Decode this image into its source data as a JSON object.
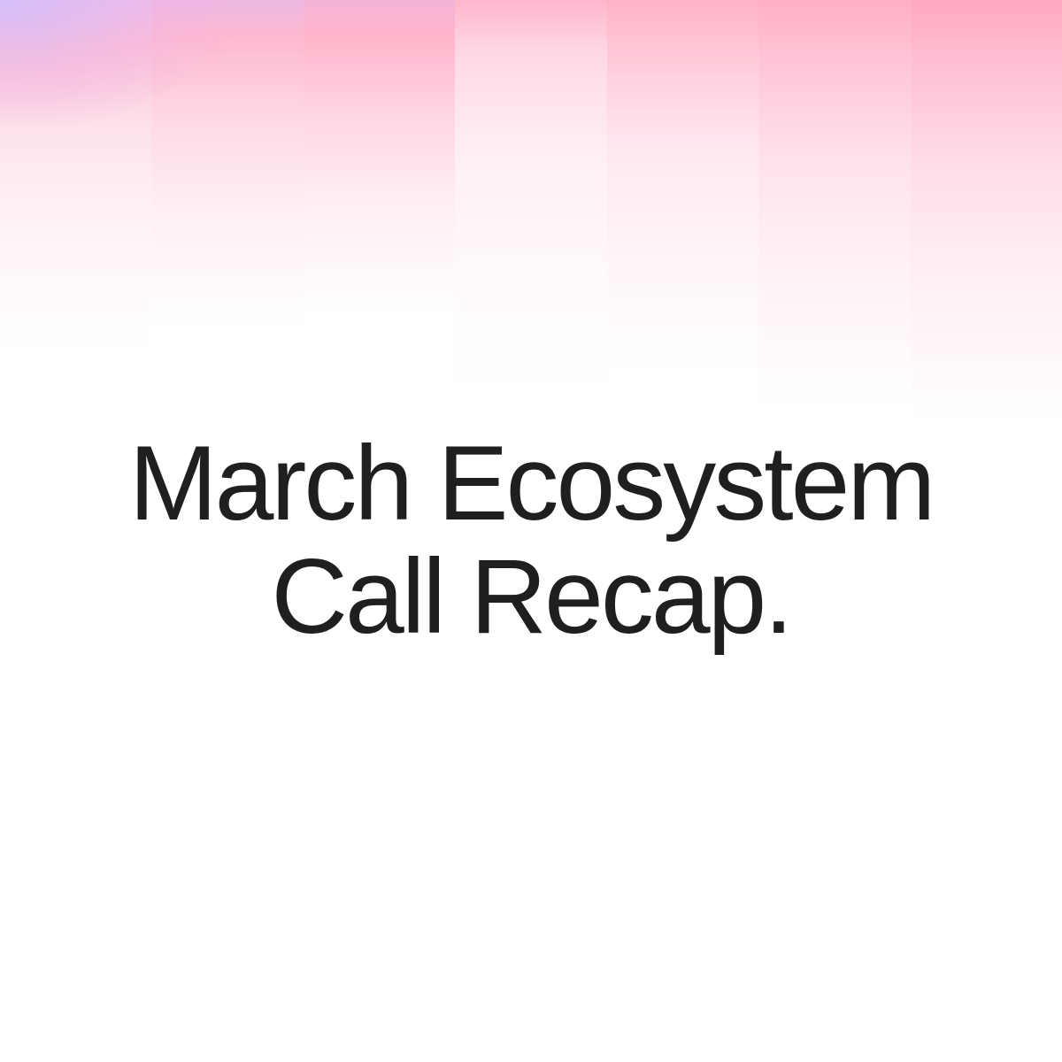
{
  "title": {
    "line1": "March Ecosystem",
    "line2": "Call Recap."
  },
  "colors": {
    "text": "#1f1f1f",
    "background": "#ffffff",
    "accent_pink": "#ffb2c8",
    "accent_lavender": "#e6bff0"
  }
}
